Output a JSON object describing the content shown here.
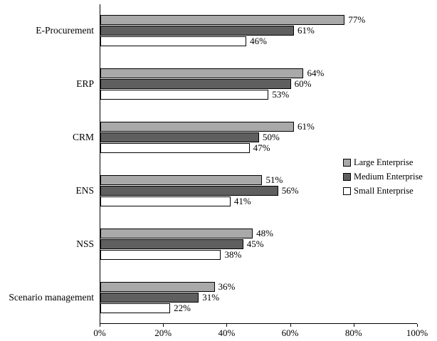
{
  "chart_data": {
    "type": "bar",
    "orientation": "horizontal",
    "title": "",
    "categories": [
      "E-Procurement",
      "ERP",
      "CRM",
      "ENS",
      "NSS",
      "Scenario management"
    ],
    "series": [
      {
        "name": "Large Enterprise",
        "color": "#a9a9a9",
        "values": [
          77,
          64,
          61,
          51,
          48,
          36
        ]
      },
      {
        "name": "Medium Enterprise",
        "color": "#5f5f5f",
        "values": [
          61,
          60,
          50,
          56,
          45,
          31
        ]
      },
      {
        "name": "Small Enterprise",
        "color": "#ffffff",
        "values": [
          46,
          53,
          47,
          41,
          38,
          22
        ]
      }
    ],
    "x_ticks": [
      "0%",
      "20%",
      "40%",
      "60%",
      "80%",
      "100%"
    ],
    "xlim": [
      0,
      100
    ],
    "value_label_format": "{v}%",
    "grid": false,
    "legend_position": "right"
  }
}
